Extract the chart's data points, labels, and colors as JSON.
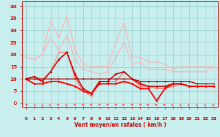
{
  "x": [
    0,
    1,
    2,
    3,
    4,
    5,
    6,
    7,
    8,
    9,
    10,
    11,
    12,
    13,
    14,
    15,
    16,
    17,
    18,
    19,
    20,
    21,
    22,
    23
  ],
  "series": [
    {
      "color": "#FFB0B0",
      "linewidth": 0.8,
      "marker": "D",
      "markersize": 1.5,
      "values": [
        19,
        18,
        20,
        34,
        27,
        36,
        22,
        16,
        15,
        15,
        15,
        25,
        33,
        19,
        19,
        17,
        17,
        16,
        14,
        15,
        15,
        15,
        15,
        15
      ]
    },
    {
      "color": "#FFB0B0",
      "linewidth": 0.8,
      "marker": "D",
      "markersize": 1.5,
      "values": [
        19,
        18,
        20,
        27,
        22,
        28,
        18,
        14,
        13,
        12,
        13,
        19,
        25,
        16,
        17,
        14,
        14,
        14,
        13,
        13,
        13,
        13,
        13,
        15
      ]
    },
    {
      "color": "#FF8888",
      "linewidth": 0.8,
      "marker": "D",
      "markersize": 1.5,
      "values": [
        10,
        11,
        10,
        13,
        21,
        21,
        10,
        5,
        4,
        9,
        9,
        9,
        13,
        10,
        7,
        7,
        7,
        7,
        8,
        8,
        7,
        7,
        7,
        7
      ]
    },
    {
      "color": "#FF6666",
      "linewidth": 0.8,
      "marker": "D",
      "markersize": 1.5,
      "values": [
        10,
        10,
        9,
        13,
        18,
        21,
        11,
        5,
        3,
        9,
        9,
        9,
        13,
        10,
        7,
        7,
        6,
        6,
        7,
        8,
        7,
        7,
        7,
        7
      ]
    },
    {
      "color": "#CC0000",
      "linewidth": 1.2,
      "marker": "D",
      "markersize": 2,
      "values": [
        10,
        11,
        9,
        13,
        18,
        21,
        12,
        6,
        4,
        9,
        9,
        12,
        13,
        10,
        8,
        7,
        7,
        7,
        8,
        8,
        7,
        7,
        7,
        7
      ]
    },
    {
      "color": "#FF0000",
      "linewidth": 1.4,
      "marker": "D",
      "markersize": 2,
      "values": [
        10,
        8,
        8,
        9,
        9,
        8,
        7,
        5,
        4,
        8,
        8,
        8,
        9,
        8,
        6,
        6,
        1,
        6,
        8,
        8,
        7,
        7,
        7,
        7
      ]
    },
    {
      "color": "#AA0000",
      "linewidth": 1.0,
      "marker": "D",
      "markersize": 1.5,
      "values": [
        10,
        10,
        10,
        10,
        10,
        10,
        10,
        10,
        10,
        10,
        10,
        10,
        10,
        10,
        9,
        9,
        9,
        9,
        9,
        9,
        9,
        8,
        8,
        8
      ]
    }
  ],
  "xlabel": "Vent moyen/en rafales ( km/h )",
  "xlim": [
    -0.5,
    23.5
  ],
  "ylim": [
    -1.5,
    42
  ],
  "yticks": [
    0,
    5,
    10,
    15,
    20,
    25,
    30,
    35,
    40
  ],
  "xticks": [
    0,
    1,
    2,
    3,
    4,
    5,
    6,
    7,
    8,
    9,
    10,
    11,
    12,
    13,
    14,
    15,
    16,
    17,
    18,
    19,
    20,
    21,
    22,
    23
  ],
  "bg_color": "#C8EEEE",
  "grid_color": "#99CCCC",
  "tick_color": "#CC0000",
  "label_color": "#CC0000",
  "wind_directions": [
    225,
    202,
    180,
    157,
    135,
    157,
    270,
    270,
    270,
    112,
    112,
    112,
    135,
    112,
    112,
    135,
    135,
    135,
    157,
    157,
    157,
    157,
    157,
    157
  ]
}
